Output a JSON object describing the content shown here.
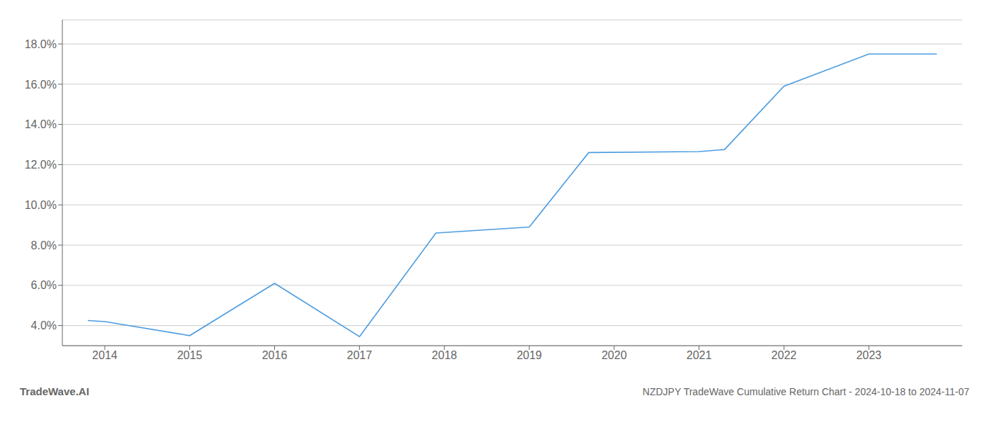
{
  "chart_data": {
    "type": "line",
    "title": "NZDJPY TradeWave Cumulative Return Chart - 2024-10-18 to 2024-11-07",
    "annotations": [
      "TradeWave.AI"
    ],
    "x": [
      2013.8,
      2014,
      2015,
      2016,
      2017,
      2017.9,
      2019,
      2019.7,
      2021,
      2021.3,
      2022,
      2023,
      2023.8
    ],
    "values": [
      4.25,
      4.2,
      3.5,
      6.1,
      3.45,
      8.6,
      8.9,
      12.6,
      12.65,
      12.75,
      15.9,
      17.5,
      17.5
    ],
    "color": "#4d9de0",
    "xlim": [
      2013.5,
      2024.1
    ],
    "ylim": [
      3.0,
      19.2
    ],
    "xticks": [
      2014,
      2015,
      2016,
      2017,
      2018,
      2019,
      2020,
      2021,
      2022,
      2023
    ],
    "yticks": [
      {
        "value": 4.0,
        "label": "4.0%"
      },
      {
        "value": 6.0,
        "label": "6.0%"
      },
      {
        "value": 8.0,
        "label": "8.0%"
      },
      {
        "value": 10.0,
        "label": "10.0%"
      },
      {
        "value": 12.0,
        "label": "12.0%"
      },
      {
        "value": 14.0,
        "label": "14.0%"
      },
      {
        "value": 16.0,
        "label": "16.0%"
      },
      {
        "value": 18.0,
        "label": "18.0%"
      }
    ],
    "grid": "y"
  }
}
